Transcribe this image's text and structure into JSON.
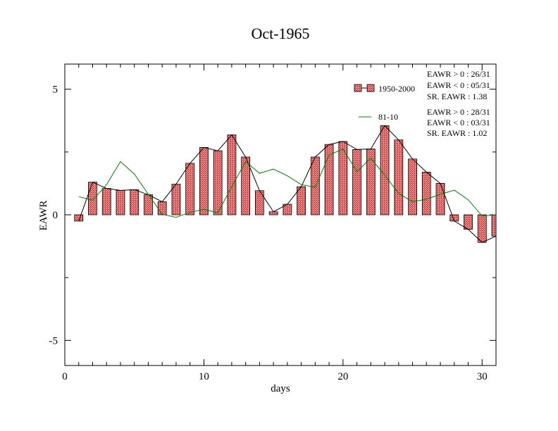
{
  "chart_data": {
    "type": "bar",
    "title": "Oct-1965",
    "xlabel": "days",
    "ylabel": "EAWR",
    "xlim": [
      0,
      31
    ],
    "ylim": [
      -6,
      6
    ],
    "x_ticks": [
      0,
      10,
      20,
      30
    ],
    "y_ticks": [
      -5,
      0,
      5
    ],
    "x": [
      1,
      2,
      3,
      4,
      5,
      6,
      7,
      8,
      9,
      10,
      11,
      12,
      13,
      14,
      15,
      16,
      17,
      18,
      19,
      20,
      21,
      22,
      23,
      24,
      25,
      26,
      27,
      28,
      29,
      30,
      31
    ],
    "series": [
      {
        "name": "1950-2000",
        "kind": "bar",
        "color": "#f08080",
        "values": [
          -0.25,
          1.3,
          1.05,
          0.97,
          1.0,
          0.8,
          0.52,
          1.22,
          2.05,
          2.68,
          2.55,
          3.18,
          2.3,
          0.96,
          0.12,
          0.42,
          1.12,
          2.3,
          2.8,
          2.92,
          2.6,
          2.62,
          3.55,
          2.98,
          2.22,
          1.7,
          1.25,
          -0.25,
          -0.58,
          -1.1,
          -0.85
        ]
      },
      {
        "name": "81-10",
        "kind": "line",
        "color": "#008000",
        "values": [
          0.72,
          0.58,
          1.2,
          2.12,
          1.62,
          0.82,
          0.02,
          -0.1,
          0.1,
          0.22,
          0.08,
          1.12,
          2.12,
          1.65,
          1.82,
          1.55,
          1.2,
          1.1,
          2.38,
          2.62,
          1.72,
          2.25,
          1.58,
          0.85,
          0.52,
          0.62,
          0.82,
          0.98,
          0.6,
          -0.05,
          0.0
        ]
      }
    ],
    "legend_position": "top-right",
    "stats": [
      [
        "EAWR > 0 : 26/31",
        "EAWR < 0 : 05/31",
        "SR. EAWR :  1.38"
      ],
      [
        "EAWR > 0 : 28/31",
        "EAWR < 0 : 03/31",
        "SR. EAWR :  1.02"
      ]
    ]
  }
}
